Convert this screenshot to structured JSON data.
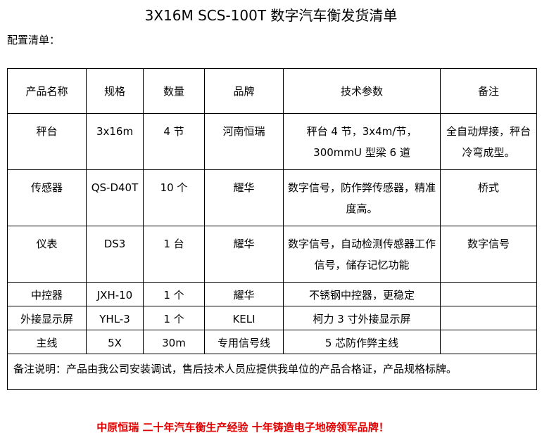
{
  "title": "3X16M SCS-100T 数字汽车衡发货清单",
  "subtitle": "配置清单：",
  "headers": [
    "产品名称",
    "规格",
    "数量",
    "品牌",
    "技术参数",
    "备注"
  ],
  "rows": [
    [
      "秤台",
      "3x16m",
      "4 节",
      "河南恒瑞",
      "秤台 4 节，3x4m/节，300mmU 型梁 6 道",
      "全自动焊接，秤台冷弯成型。"
    ],
    [
      "传感器",
      "QS-D40T",
      "10 个",
      "耀华",
      "数字信号，防作弊传感器，精准度高。",
      "桥式"
    ],
    [
      "仪表",
      "DS3",
      "1 台",
      "耀华",
      "数字信号，自动检测传感器工作信号，储存记忆功能",
      "数字信号"
    ],
    [
      "中控器",
      "JXH-10",
      "1 个",
      "耀华",
      "不锈钢中控器，更稳定",
      ""
    ],
    [
      "外接显示屏",
      "YHL-3",
      "1 个",
      "KELI",
      "柯力 3 寸外接显示屏",
      ""
    ],
    [
      "主线",
      "5X",
      "30m",
      "专用信号线",
      "5 芯防作弊主线",
      ""
    ]
  ],
  "remark": "备注说明：产品由我公司安装调试，售后技术人员应提供我单位的产品合格证，产品规格标牌。",
  "footer": "中原恒瑞 二十年汽车衡生产经验 十年铸造电子地磅领军品牌！",
  "colors": {
    "footer": "#e00000"
  }
}
